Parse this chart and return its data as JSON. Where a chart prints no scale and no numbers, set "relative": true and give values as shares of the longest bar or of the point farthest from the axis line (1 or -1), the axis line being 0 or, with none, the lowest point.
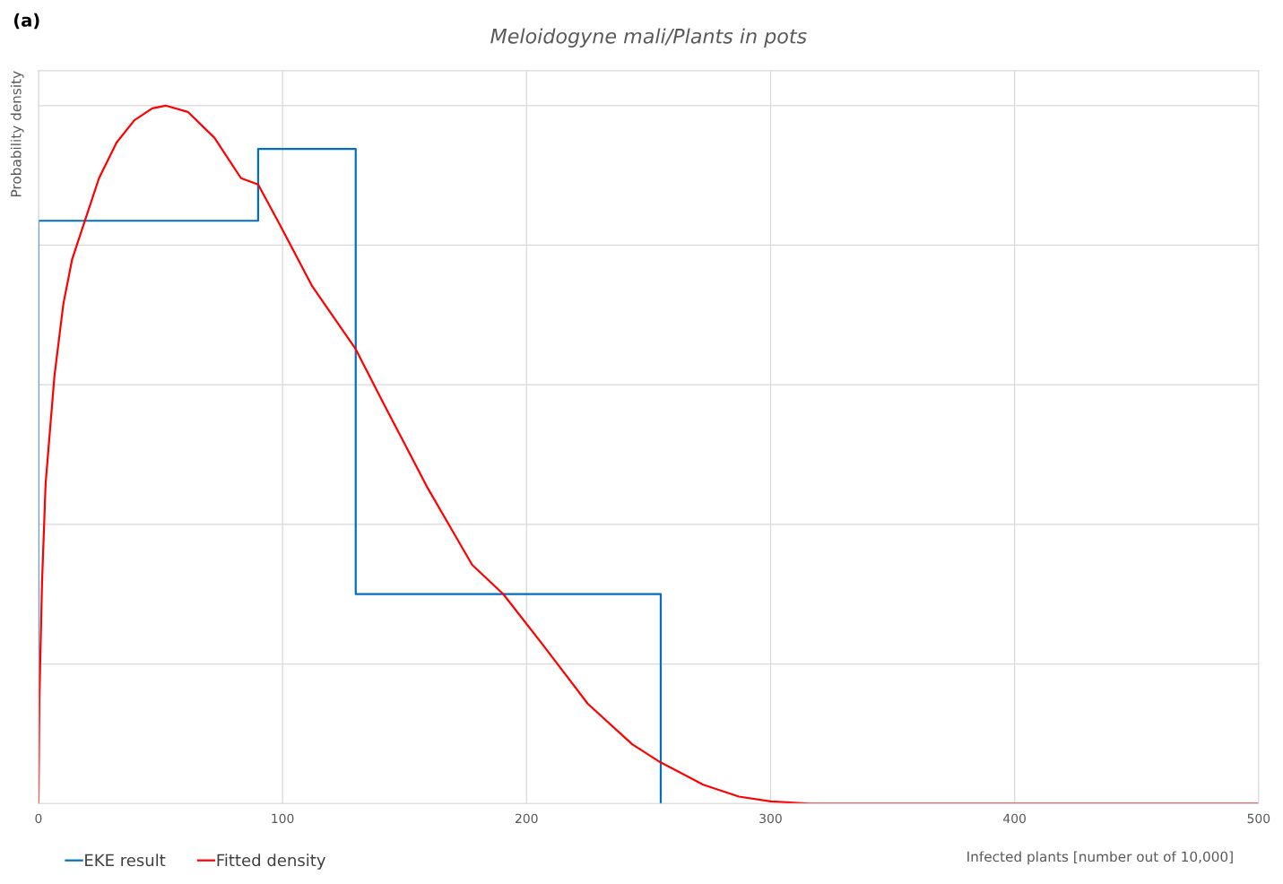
{
  "chart_data": {
    "type": "line",
    "title": "Meloidogyne mali/Plants in pots",
    "xlabel": "Infected plants [number out of 10,000]",
    "ylabel": "Probability density",
    "annotations": [
      "(a)"
    ],
    "relative": true,
    "xlim": [
      0,
      500
    ],
    "xticks": [
      0,
      100,
      200,
      300,
      400,
      500
    ],
    "grid": true,
    "legend": "bottom left",
    "tick_labels": "x",
    "series": [
      {
        "name": "EKE result",
        "type": "step",
        "color": "#0070c0",
        "x": [
          0,
          0,
          90,
          130,
          255
        ],
        "values": [
          0,
          0.835,
          0.938,
          0.3,
          0
        ]
      },
      {
        "name": "Fitted density",
        "color": "#ff0000",
        "x": [
          0,
          0.36,
          1.46,
          2.91,
          6.55,
          10.2,
          13.8,
          19.3,
          24.8,
          32.0,
          39.3,
          46.6,
          52.1,
          61.2,
          72.1,
          83.0,
          90.0,
          97.6,
          112.2,
          130.0,
          141.3,
          159.5,
          177.7,
          190.5,
          206.8,
          225.1,
          243.3,
          254.9,
          272.4,
          287.0,
          300.1,
          316.1,
          500
        ],
        "values": [
          0,
          0.149,
          0.317,
          0.458,
          0.613,
          0.716,
          0.78,
          0.838,
          0.896,
          0.947,
          0.979,
          0.996,
          1.0,
          0.991,
          0.954,
          0.896,
          0.887,
          0.838,
          0.741,
          0.651,
          0.574,
          0.452,
          0.342,
          0.3,
          0.227,
          0.143,
          0.085,
          0.059,
          0.027,
          0.01,
          0.003,
          0,
          0
        ]
      }
    ]
  }
}
